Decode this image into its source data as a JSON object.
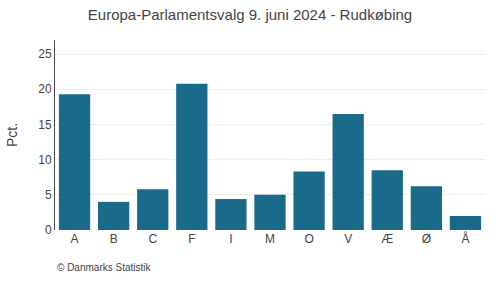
{
  "chart_data": {
    "type": "bar",
    "title": "Europa-Parlamentsvalg 9. juni 2024 - Rudkøbing",
    "ylabel": "Pct.",
    "annotations": [
      "© Danmarks Statistik"
    ],
    "categories": [
      "A",
      "B",
      "C",
      "F",
      "I",
      "M",
      "O",
      "V",
      "Æ",
      "Ø",
      "Å"
    ],
    "values": [
      19.3,
      4.0,
      5.8,
      20.8,
      4.4,
      5.0,
      8.3,
      16.5,
      8.5,
      6.2,
      2.0
    ],
    "color": "#1a6b8a",
    "ylim": [
      0,
      27
    ],
    "yticks": [
      0,
      5,
      10,
      15,
      20,
      25
    ],
    "grid": true
  }
}
